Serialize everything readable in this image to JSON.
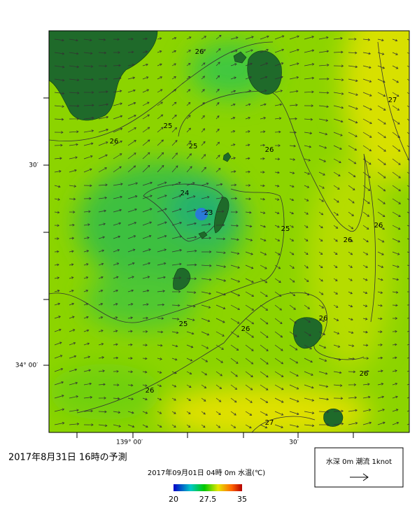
{
  "header": {
    "title": "2017年8月31日 16時の予測",
    "subtitle": "2017年09月01日 04時 0m 水温(℃)"
  },
  "colorbar": {
    "ticks": [
      20,
      27.5,
      35
    ]
  },
  "legend": {
    "label": "水深 0m 潮流 1knot"
  },
  "axes": {
    "y_labels": [
      "30′",
      "34° 00′"
    ],
    "x_labels": [
      "139° 00′",
      "30′"
    ]
  },
  "contour_labels": [
    26,
    25,
    26,
    25,
    26,
    27,
    24,
    23,
    25,
    26,
    26,
    25,
    26,
    26,
    26,
    26,
    27
  ]
}
